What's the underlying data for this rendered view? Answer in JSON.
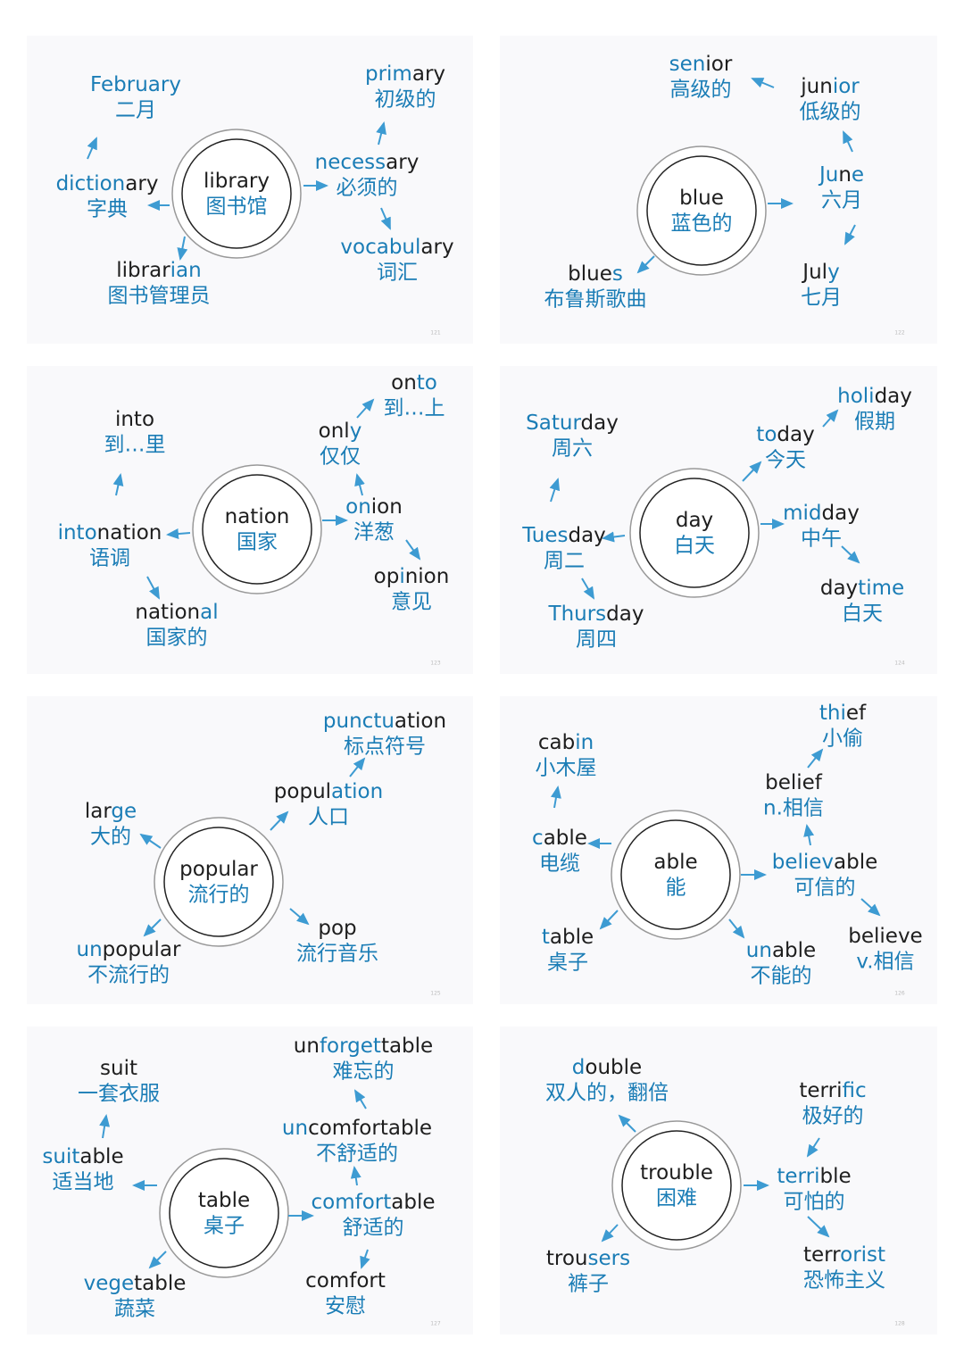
{
  "colors": {
    "b": "#1b7db6",
    "k": "#1e1e1e"
  },
  "panels": [
    {
      "page": "121",
      "center": {
        "word": [
          [
            "library",
            "k"
          ]
        ],
        "cn": "图书馆"
      },
      "nodes": [
        {
          "word": [
            [
              "February",
              "b"
            ]
          ],
          "cn": "二月"
        },
        {
          "word": [
            [
              "diction",
              "b"
            ],
            [
              "ary",
              "k"
            ]
          ],
          "cn": "字典"
        },
        {
          "word": [
            [
              "librar",
              "k"
            ],
            [
              "ian",
              "b"
            ]
          ],
          "cn": "图书管理员"
        },
        {
          "word": [
            [
              "prim",
              "b"
            ],
            [
              "ary",
              "k"
            ]
          ],
          "cn": "初级的"
        },
        {
          "word": [
            [
              "necess",
              "b"
            ],
            [
              "ary",
              "k"
            ]
          ],
          "cn": "必须的"
        },
        {
          "word": [
            [
              "vocabul",
              "b"
            ],
            [
              "ary",
              "k"
            ]
          ],
          "cn": "词汇"
        }
      ]
    },
    {
      "page": "122",
      "center": {
        "word": [
          [
            "blue",
            "k"
          ]
        ],
        "cn": "蓝色的"
      },
      "nodes": [
        {
          "word": [
            [
              "sen",
              "b"
            ],
            [
              "ior",
              "k"
            ]
          ],
          "cn": "高级的"
        },
        {
          "word": [
            [
              "jun",
              "k"
            ],
            [
              "ior",
              "b"
            ]
          ],
          "cn": "低级的"
        },
        {
          "word": [
            [
              "Ju",
              "b"
            ],
            [
              "n",
              "k"
            ],
            [
              "e",
              "b"
            ]
          ],
          "cn": "六月"
        },
        {
          "word": [
            [
              "Jul",
              "k"
            ],
            [
              "y",
              "b"
            ]
          ],
          "cn": "七月"
        },
        {
          "word": [
            [
              "blue",
              "k"
            ],
            [
              "s",
              "b"
            ]
          ],
          "cn": "布鲁斯歌曲"
        }
      ]
    },
    {
      "page": "123",
      "center": {
        "word": [
          [
            "nation",
            "k"
          ]
        ],
        "cn": "国家"
      },
      "nodes": [
        {
          "word": [
            [
              "into",
              "k"
            ]
          ],
          "cn": "到…里"
        },
        {
          "word": [
            [
              "into",
              "b"
            ],
            [
              "nation",
              "k"
            ]
          ],
          "cn": "语调"
        },
        {
          "word": [
            [
              "nation",
              "k"
            ],
            [
              "al",
              "b"
            ]
          ],
          "cn": "国家的"
        },
        {
          "word": [
            [
              "onl",
              "k"
            ],
            [
              "y",
              "b"
            ]
          ],
          "cn": "仅仅"
        },
        {
          "word": [
            [
              "on",
              "b"
            ],
            [
              "ion",
              "k"
            ]
          ],
          "cn": "洋葱"
        },
        {
          "word": [
            [
              "on",
              "k"
            ],
            [
              "to",
              "b"
            ]
          ],
          "cn": "到…上"
        },
        {
          "word": [
            [
              "op",
              "k"
            ],
            [
              "i",
              "b"
            ],
            [
              "nion",
              "k"
            ]
          ],
          "cn": "意见"
        }
      ]
    },
    {
      "page": "124",
      "center": {
        "word": [
          [
            "day",
            "k"
          ]
        ],
        "cn": "白天"
      },
      "nodes": [
        {
          "word": [
            [
              "Satur",
              "b"
            ],
            [
              "day",
              "k"
            ]
          ],
          "cn": "周六"
        },
        {
          "word": [
            [
              "Tues",
              "b"
            ],
            [
              "day",
              "k"
            ]
          ],
          "cn": "周二"
        },
        {
          "word": [
            [
              "Thurs",
              "b"
            ],
            [
              "day",
              "k"
            ]
          ],
          "cn": "周四"
        },
        {
          "word": [
            [
              "to",
              "b"
            ],
            [
              "day",
              "k"
            ]
          ],
          "cn": "今天"
        },
        {
          "word": [
            [
              "holi",
              "b"
            ],
            [
              "day",
              "k"
            ]
          ],
          "cn": "假期"
        },
        {
          "word": [
            [
              "mid",
              "b"
            ],
            [
              "day",
              "k"
            ]
          ],
          "cn": "中午"
        },
        {
          "word": [
            [
              "day",
              "k"
            ],
            [
              "time",
              "b"
            ]
          ],
          "cn": "白天"
        }
      ]
    },
    {
      "page": "125",
      "center": {
        "word": [
          [
            "popular",
            "k"
          ]
        ],
        "cn": "流行的"
      },
      "nodes": [
        {
          "word": [
            [
              "lar",
              "k"
            ],
            [
              "ge",
              "b"
            ]
          ],
          "cn": "大的"
        },
        {
          "word": [
            [
              "un",
              "b"
            ],
            [
              "popular",
              "k"
            ]
          ],
          "cn": "不流行的"
        },
        {
          "word": [
            [
              "popul",
              "k"
            ],
            [
              "ation",
              "b"
            ]
          ],
          "cn": "人口"
        },
        {
          "word": [
            [
              "punctu",
              "b"
            ],
            [
              "ation",
              "k"
            ]
          ],
          "cn": "标点符号"
        },
        {
          "word": [
            [
              "pop",
              "k"
            ]
          ],
          "cn": "流行音乐"
        }
      ]
    },
    {
      "page": "126",
      "center": {
        "word": [
          [
            "able",
            "k"
          ]
        ],
        "cn": "能"
      },
      "nodes": [
        {
          "word": [
            [
              "cab",
              "k"
            ],
            [
              "in",
              "b"
            ]
          ],
          "cn": "小木屋"
        },
        {
          "word": [
            [
              "c",
              "b"
            ],
            [
              "able",
              "k"
            ]
          ],
          "cn": "电缆"
        },
        {
          "word": [
            [
              "t",
              "b"
            ],
            [
              "able",
              "k"
            ]
          ],
          "cn": "桌子"
        },
        {
          "word": [
            [
              "un",
              "b"
            ],
            [
              "able",
              "k"
            ]
          ],
          "cn": "不能的"
        },
        {
          "word": [
            [
              "believ",
              "b"
            ],
            [
              "able",
              "k"
            ]
          ],
          "cn": "可信的"
        },
        {
          "word": [
            [
              "belief",
              "k"
            ]
          ],
          "cn": "n.相信"
        },
        {
          "word": [
            [
              "thi",
              "b"
            ],
            [
              "ef",
              "k"
            ]
          ],
          "cn": "小偷"
        },
        {
          "word": [
            [
              "believe",
              "k"
            ]
          ],
          "cn": "v.相信"
        }
      ]
    },
    {
      "page": "127",
      "center": {
        "word": [
          [
            "table",
            "k"
          ]
        ],
        "cn": "桌子"
      },
      "nodes": [
        {
          "word": [
            [
              "suit",
              "k"
            ]
          ],
          "cn": "一套衣服"
        },
        {
          "word": [
            [
              "suit",
              "b"
            ],
            [
              "able",
              "k"
            ]
          ],
          "cn": "适当地"
        },
        {
          "word": [
            [
              "vege",
              "b"
            ],
            [
              "table",
              "k"
            ]
          ],
          "cn": "蔬菜"
        },
        {
          "word": [
            [
              "comfort",
              "b"
            ],
            [
              "able",
              "k"
            ]
          ],
          "cn": "舒适的"
        },
        {
          "word": [
            [
              "un",
              "b"
            ],
            [
              "comfortable",
              "k"
            ]
          ],
          "cn": "不舒适的"
        },
        {
          "word": [
            [
              "un",
              "k"
            ],
            [
              "forget",
              "b"
            ],
            [
              "table",
              "k"
            ]
          ],
          "cn": "难忘的"
        },
        {
          "word": [
            [
              "comfort",
              "k"
            ]
          ],
          "cn": "安慰"
        }
      ]
    },
    {
      "page": "128",
      "center": {
        "word": [
          [
            "trouble",
            "k"
          ]
        ],
        "cn": "困难"
      },
      "nodes": [
        {
          "word": [
            [
              "d",
              "b"
            ],
            [
              "ouble",
              "k"
            ]
          ],
          "cn": "双人的，翻倍"
        },
        {
          "word": [
            [
              "trou",
              "k"
            ],
            [
              "sers",
              "b"
            ]
          ],
          "cn": "裤子"
        },
        {
          "word": [
            [
              "terri",
              "k"
            ],
            [
              "fic",
              "b"
            ]
          ],
          "cn": "极好的"
        },
        {
          "word": [
            [
              "terri",
              "b"
            ],
            [
              "ble",
              "k"
            ]
          ],
          "cn": "可怕的"
        },
        {
          "word": [
            [
              "terr",
              "k"
            ],
            [
              "orist",
              "b"
            ]
          ],
          "cn": "恐怖主义"
        }
      ]
    }
  ]
}
